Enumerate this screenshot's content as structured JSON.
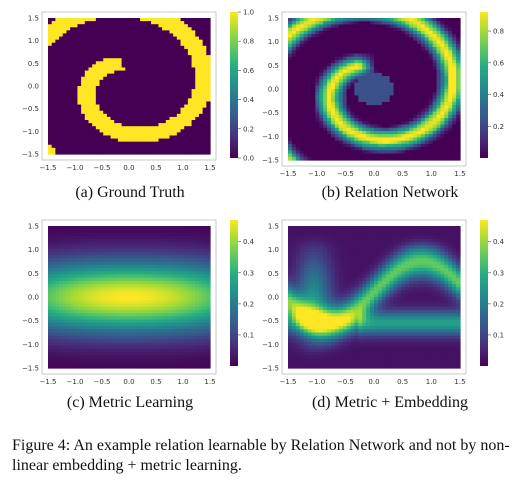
{
  "figure": {
    "label": "Figure 4:",
    "text": "An example relation learnable by Relation Network and not by non-linear embedding + metric learning."
  },
  "colormap": {
    "name": "viridis",
    "background": "#440154"
  },
  "panels": [
    {
      "caption": "(a) Ground Truth",
      "field": "spiral",
      "x_ticks": [
        "−1.5",
        "−1.0",
        "−0.5",
        "0.0",
        "0.5",
        "1.0",
        "1.5"
      ],
      "y_ticks": [
        "1.5",
        "1.0",
        "0.5",
        "0.0",
        "−0.5",
        "−1.0",
        "−1.5"
      ],
      "colorbar_ticks": [
        "1.0",
        "0.8",
        "0.6",
        "0.4",
        "0.2",
        "0.0"
      ],
      "colorbar_values": [
        1.0,
        0.8,
        0.6,
        0.4,
        0.2,
        0.0
      ],
      "vmax": 1.0
    },
    {
      "caption": "(b) Relation Network",
      "field": "blurred_spiral",
      "x_ticks": [
        "−1.5",
        "−1.0",
        "−0.5",
        "0.0",
        "0.5",
        "1.0",
        "1.5"
      ],
      "y_ticks": [
        "1.5",
        "1.0",
        "0.5",
        "0.0",
        "−0.5",
        "−1.0",
        "−1.5"
      ],
      "colorbar_ticks": [
        "0.8",
        "0.6",
        "0.4",
        "0.2"
      ],
      "colorbar_values": [
        0.8,
        0.6,
        0.4,
        0.2
      ],
      "vmax": 0.92
    },
    {
      "caption": "(c) Metric Learning",
      "field": "horizontal_band",
      "x_ticks": [
        "−1.5",
        "−1.0",
        "−0.5",
        "0.0",
        "0.5",
        "1.0",
        "1.5"
      ],
      "y_ticks": [
        "1.5",
        "1.0",
        "0.5",
        "0.0",
        "−0.5",
        "−1.0",
        "−1.5"
      ],
      "colorbar_ticks": [
        "0.4",
        "0.3",
        "0.2",
        "0.1"
      ],
      "colorbar_values": [
        0.4,
        0.3,
        0.2,
        0.1
      ],
      "vmax": 0.47
    },
    {
      "caption": "(d) Metric + Embedding",
      "field": "wavy_blobs",
      "x_ticks": [
        "−1.5",
        "−1.0",
        "−0.5",
        "0.0",
        "0.5",
        "1.0",
        "1.5"
      ],
      "y_ticks": [
        "1.5",
        "1.0",
        "0.5",
        "0.0",
        "−0.5",
        "−1.0",
        "−1.5"
      ],
      "colorbar_ticks": [
        "0.4",
        "0.3",
        "0.2",
        "0.1"
      ],
      "colorbar_values": [
        0.4,
        0.3,
        0.2,
        0.1
      ],
      "vmax": 0.47
    }
  ]
}
